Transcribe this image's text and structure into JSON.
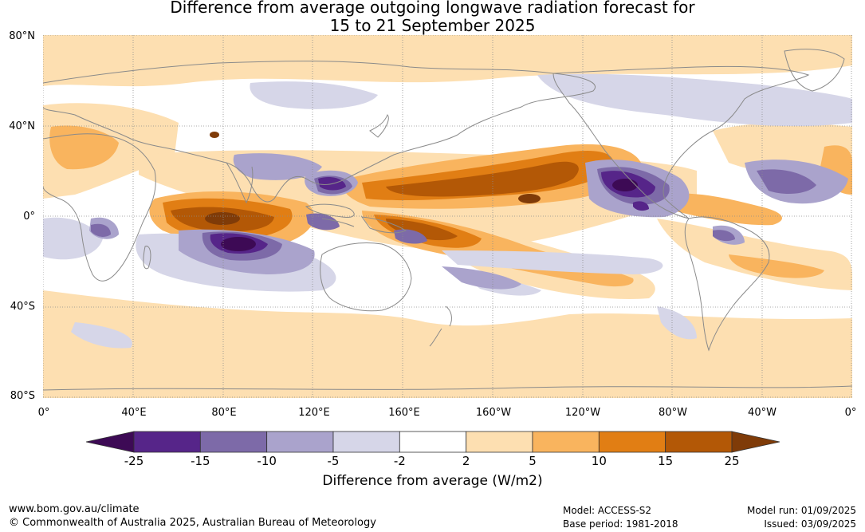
{
  "title": {
    "line1": "Difference from average outgoing longwave radiation forecast for",
    "line2": "15 to 21 September 2025"
  },
  "map": {
    "lat_labels": [
      "80°N",
      "40°N",
      "0°",
      "40°S",
      "80°S"
    ],
    "lon_labels": [
      "0°",
      "40°E",
      "80°E",
      "120°E",
      "160°E",
      "160°W",
      "120°W",
      "80°W",
      "40°W",
      "0°"
    ],
    "land_outline_color": "#8a8a8a",
    "grid_style": "dotted"
  },
  "colorbar": {
    "title": "Difference from average (W/m2)",
    "tick_labels": [
      "-25",
      "-15",
      "-10",
      "-5",
      "-2",
      "2",
      "5",
      "10",
      "15",
      "25"
    ],
    "colors": [
      "#3d0a55",
      "#562589",
      "#7d6aa8",
      "#aaa3cc",
      "#d6d6e8",
      "#ffffff",
      "#fddfb1",
      "#f9b45e",
      "#e17e14",
      "#b35806",
      "#7f3b08"
    ],
    "extend": "both"
  },
  "footer": {
    "url": "www.bom.gov.au/climate",
    "copyright": "© Commonwealth of Australia 2025, Australian Bureau of Meteorology",
    "model": "Model: ACCESS-S2",
    "base_period": "Base period: 1981-2018",
    "model_run": "Model run: 01/09/2025",
    "issued": "Issued: 03/09/2025"
  }
}
